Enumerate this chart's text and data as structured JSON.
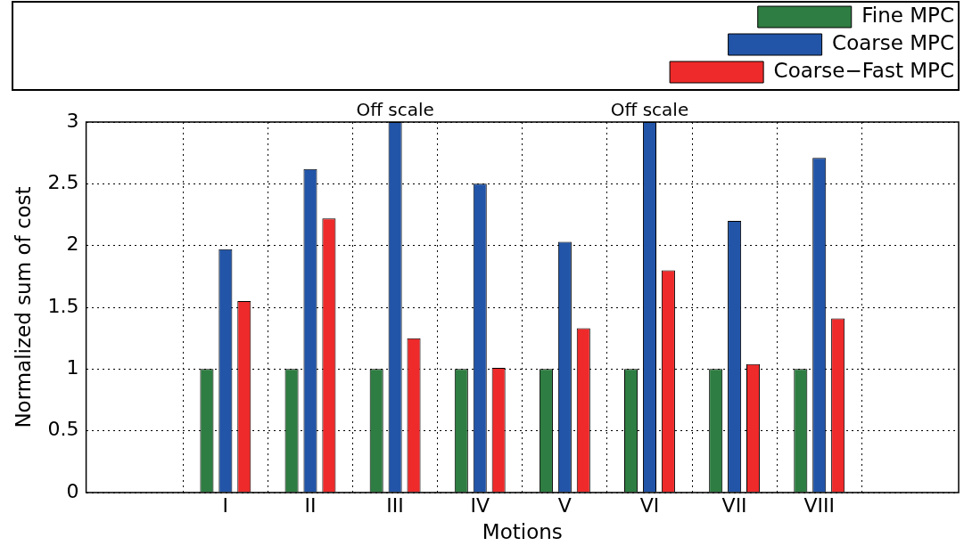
{
  "chart_data": {
    "type": "bar",
    "xlabel": "Motions",
    "ylabel": "Normalized sum of cost",
    "categories": [
      "I",
      "II",
      "III",
      "IV",
      "V",
      "VI",
      "VII",
      "VIII"
    ],
    "series": [
      {
        "name": "Fine MPC",
        "color": "#2e7d42",
        "values": [
          1,
          1,
          1,
          1,
          1,
          1,
          1,
          1
        ]
      },
      {
        "name": "Coarse MPC",
        "color": "#2255a8",
        "values": [
          1.97,
          2.62,
          3,
          2.5,
          2.03,
          3,
          2.2,
          2.71
        ]
      },
      {
        "name": "Coarse−Fast MPC",
        "color": "#ee2a2a",
        "values": [
          1.55,
          2.22,
          1.25,
          1.01,
          1.33,
          1.8,
          1.04,
          1.41
        ]
      }
    ],
    "ylim": [
      0,
      3
    ],
    "yticks": [
      0,
      0.5,
      1,
      1.5,
      2,
      2.5,
      3
    ],
    "grid": true,
    "legend": "top right",
    "annotations": [
      {
        "text": "Off scale",
        "x": "III",
        "y": 3
      },
      {
        "text": "Off scale",
        "x": "VI",
        "y": 3
      }
    ]
  }
}
